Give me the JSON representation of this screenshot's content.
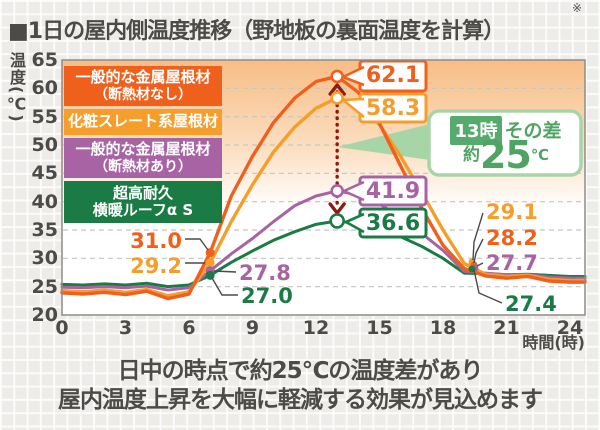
{
  "header": {
    "title": "■1日の屋内側温度推移（野地板の裏面温度を計算）",
    "footnote_mark": "※"
  },
  "footer": {
    "line1": "日中の時点で約25℃の温度差があり",
    "line2": "屋内温度上昇を大幅に軽減する効果が見込めます"
  },
  "legend": [
    {
      "line1": "一般的な金属屋根材",
      "line2": "（断熱材なし）",
      "color": "#f0601d"
    },
    {
      "line1": "化粧スレート系屋根材",
      "line2": "",
      "color": "#f59e2b"
    },
    {
      "line1": "一般的な金属屋根材",
      "line2": "（断熱材あり）",
      "color": "#a863a5"
    },
    {
      "line1": "超高耐久",
      "line2": "横暖ルーフα S",
      "color": "#1b7b45"
    }
  ],
  "callout": {
    "time": "13時",
    "diff_label": "その差",
    "approx": "約",
    "value": "25",
    "unit": "℃",
    "text_color": "#4fa463",
    "badge_bg": "#57aa6d",
    "border_color": "#a8d5a8",
    "arrow_color": "#8c1c10"
  },
  "chart_data": {
    "type": "line",
    "title": "1日の屋内側温度推移（野地板の裏面温度を計算）",
    "xlabel": "時間(時)",
    "ylabel": "温度(℃)",
    "xlim": [
      0,
      24
    ],
    "ylim": [
      20,
      65
    ],
    "x_ticks": [
      0,
      3,
      6,
      9,
      12,
      15,
      18,
      21,
      24
    ],
    "y_ticks": [
      65,
      60,
      55,
      50,
      45,
      40,
      35,
      30,
      25,
      20
    ],
    "grid": "horizontal-dashed",
    "x": [
      0,
      1,
      2,
      3,
      4,
      5,
      6,
      7,
      8,
      9,
      10,
      11,
      12,
      13,
      14,
      15,
      16,
      17,
      18,
      19,
      20,
      21,
      22,
      23,
      24
    ],
    "series": [
      {
        "name": "一般的な金属屋根材（断熱材なし）",
        "color": "#f0601d",
        "values": [
          23.9,
          23.7,
          24.0,
          23.6,
          24.2,
          22.9,
          23.7,
          31.0,
          41.0,
          48.0,
          54.0,
          58.3,
          61.2,
          62.1,
          59.3,
          53.8,
          46.3,
          38.8,
          32.3,
          28.2,
          26.9,
          26.5,
          26.8,
          26.0,
          25.8
        ],
        "morning_label": "31.0",
        "peak_label": "62.1",
        "evening_label": "28.2"
      },
      {
        "name": "化粧スレート系屋根材",
        "color": "#f59e2b",
        "values": [
          24.3,
          24.1,
          24.4,
          24.0,
          24.5,
          23.4,
          24.1,
          29.2,
          36.5,
          43.0,
          48.8,
          53.2,
          56.5,
          58.3,
          57.2,
          53.6,
          48.0,
          41.6,
          35.0,
          29.1,
          27.2,
          26.8,
          27.0,
          26.3,
          26.1
        ],
        "morning_label": "29.2",
        "peak_label": "58.3",
        "evening_label": "29.1"
      },
      {
        "name": "一般的な金属屋根材（断熱材あり）",
        "color": "#a863a5",
        "values": [
          24.9,
          24.8,
          25.0,
          24.8,
          25.1,
          24.4,
          24.8,
          27.8,
          30.8,
          33.5,
          36.5,
          39.3,
          41.0,
          41.9,
          41.2,
          39.6,
          37.2,
          34.4,
          31.4,
          27.7,
          27.4,
          27.1,
          27.15,
          26.7,
          26.5
        ],
        "morning_label": "27.8",
        "peak_label": "41.9",
        "evening_label": "27.7"
      },
      {
        "name": "超高耐久 横暖ルーフα S",
        "color": "#1b7b45",
        "values": [
          25.4,
          25.3,
          25.5,
          25.3,
          25.6,
          25.0,
          25.3,
          27.0,
          29.3,
          31.3,
          33.2,
          34.7,
          36.0,
          36.6,
          36.1,
          35.2,
          33.8,
          32.1,
          30.0,
          27.4,
          27.3,
          27.1,
          27.2,
          27.0,
          26.8
        ],
        "morning_label": "27.0",
        "peak_label": "36.6",
        "evening_label": "27.4"
      }
    ],
    "annotations": {
      "peak_time": "13時",
      "difference": "約25℃",
      "morning_time": 7,
      "evening_time": 19
    }
  }
}
